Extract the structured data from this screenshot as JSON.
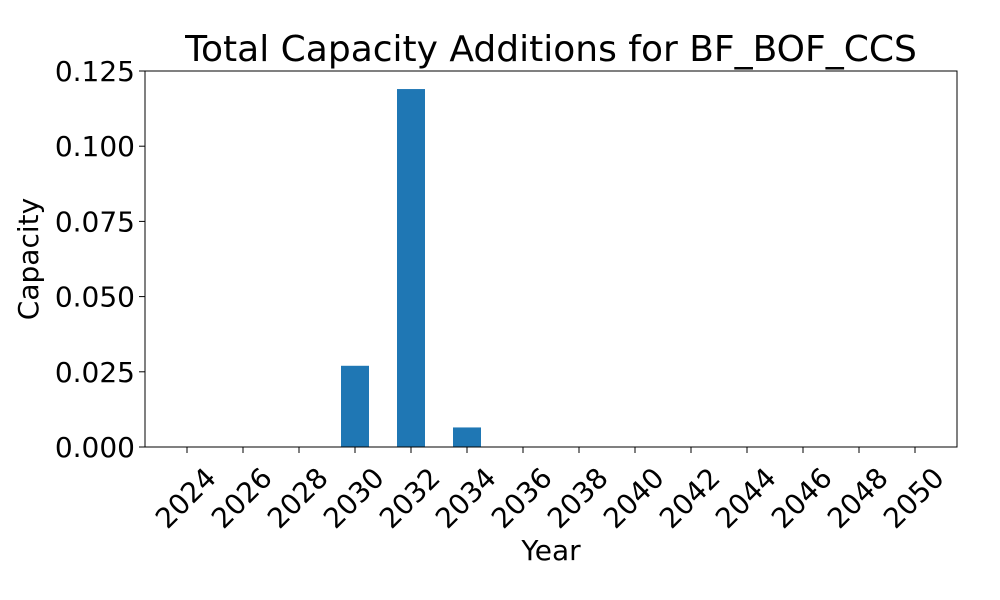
{
  "chart_data": {
    "type": "bar",
    "title": "Total Capacity Additions for BF_BOF_CCS",
    "xlabel": "Year",
    "ylabel": "Capacity",
    "categories": [
      "2024",
      "2026",
      "2028",
      "2030",
      "2032",
      "2034",
      "2036",
      "2038",
      "2040",
      "2042",
      "2044",
      "2046",
      "2048",
      "2050"
    ],
    "values": [
      0,
      0,
      0,
      0.027,
      0.119,
      0.0065,
      0,
      0,
      0,
      0,
      0,
      0,
      0,
      0
    ],
    "ylim": [
      0,
      0.125
    ],
    "yticks": [
      "0.000",
      "0.025",
      "0.050",
      "0.075",
      "0.100",
      "0.125"
    ],
    "grid": false,
    "bar_color": "#1f77b4"
  }
}
